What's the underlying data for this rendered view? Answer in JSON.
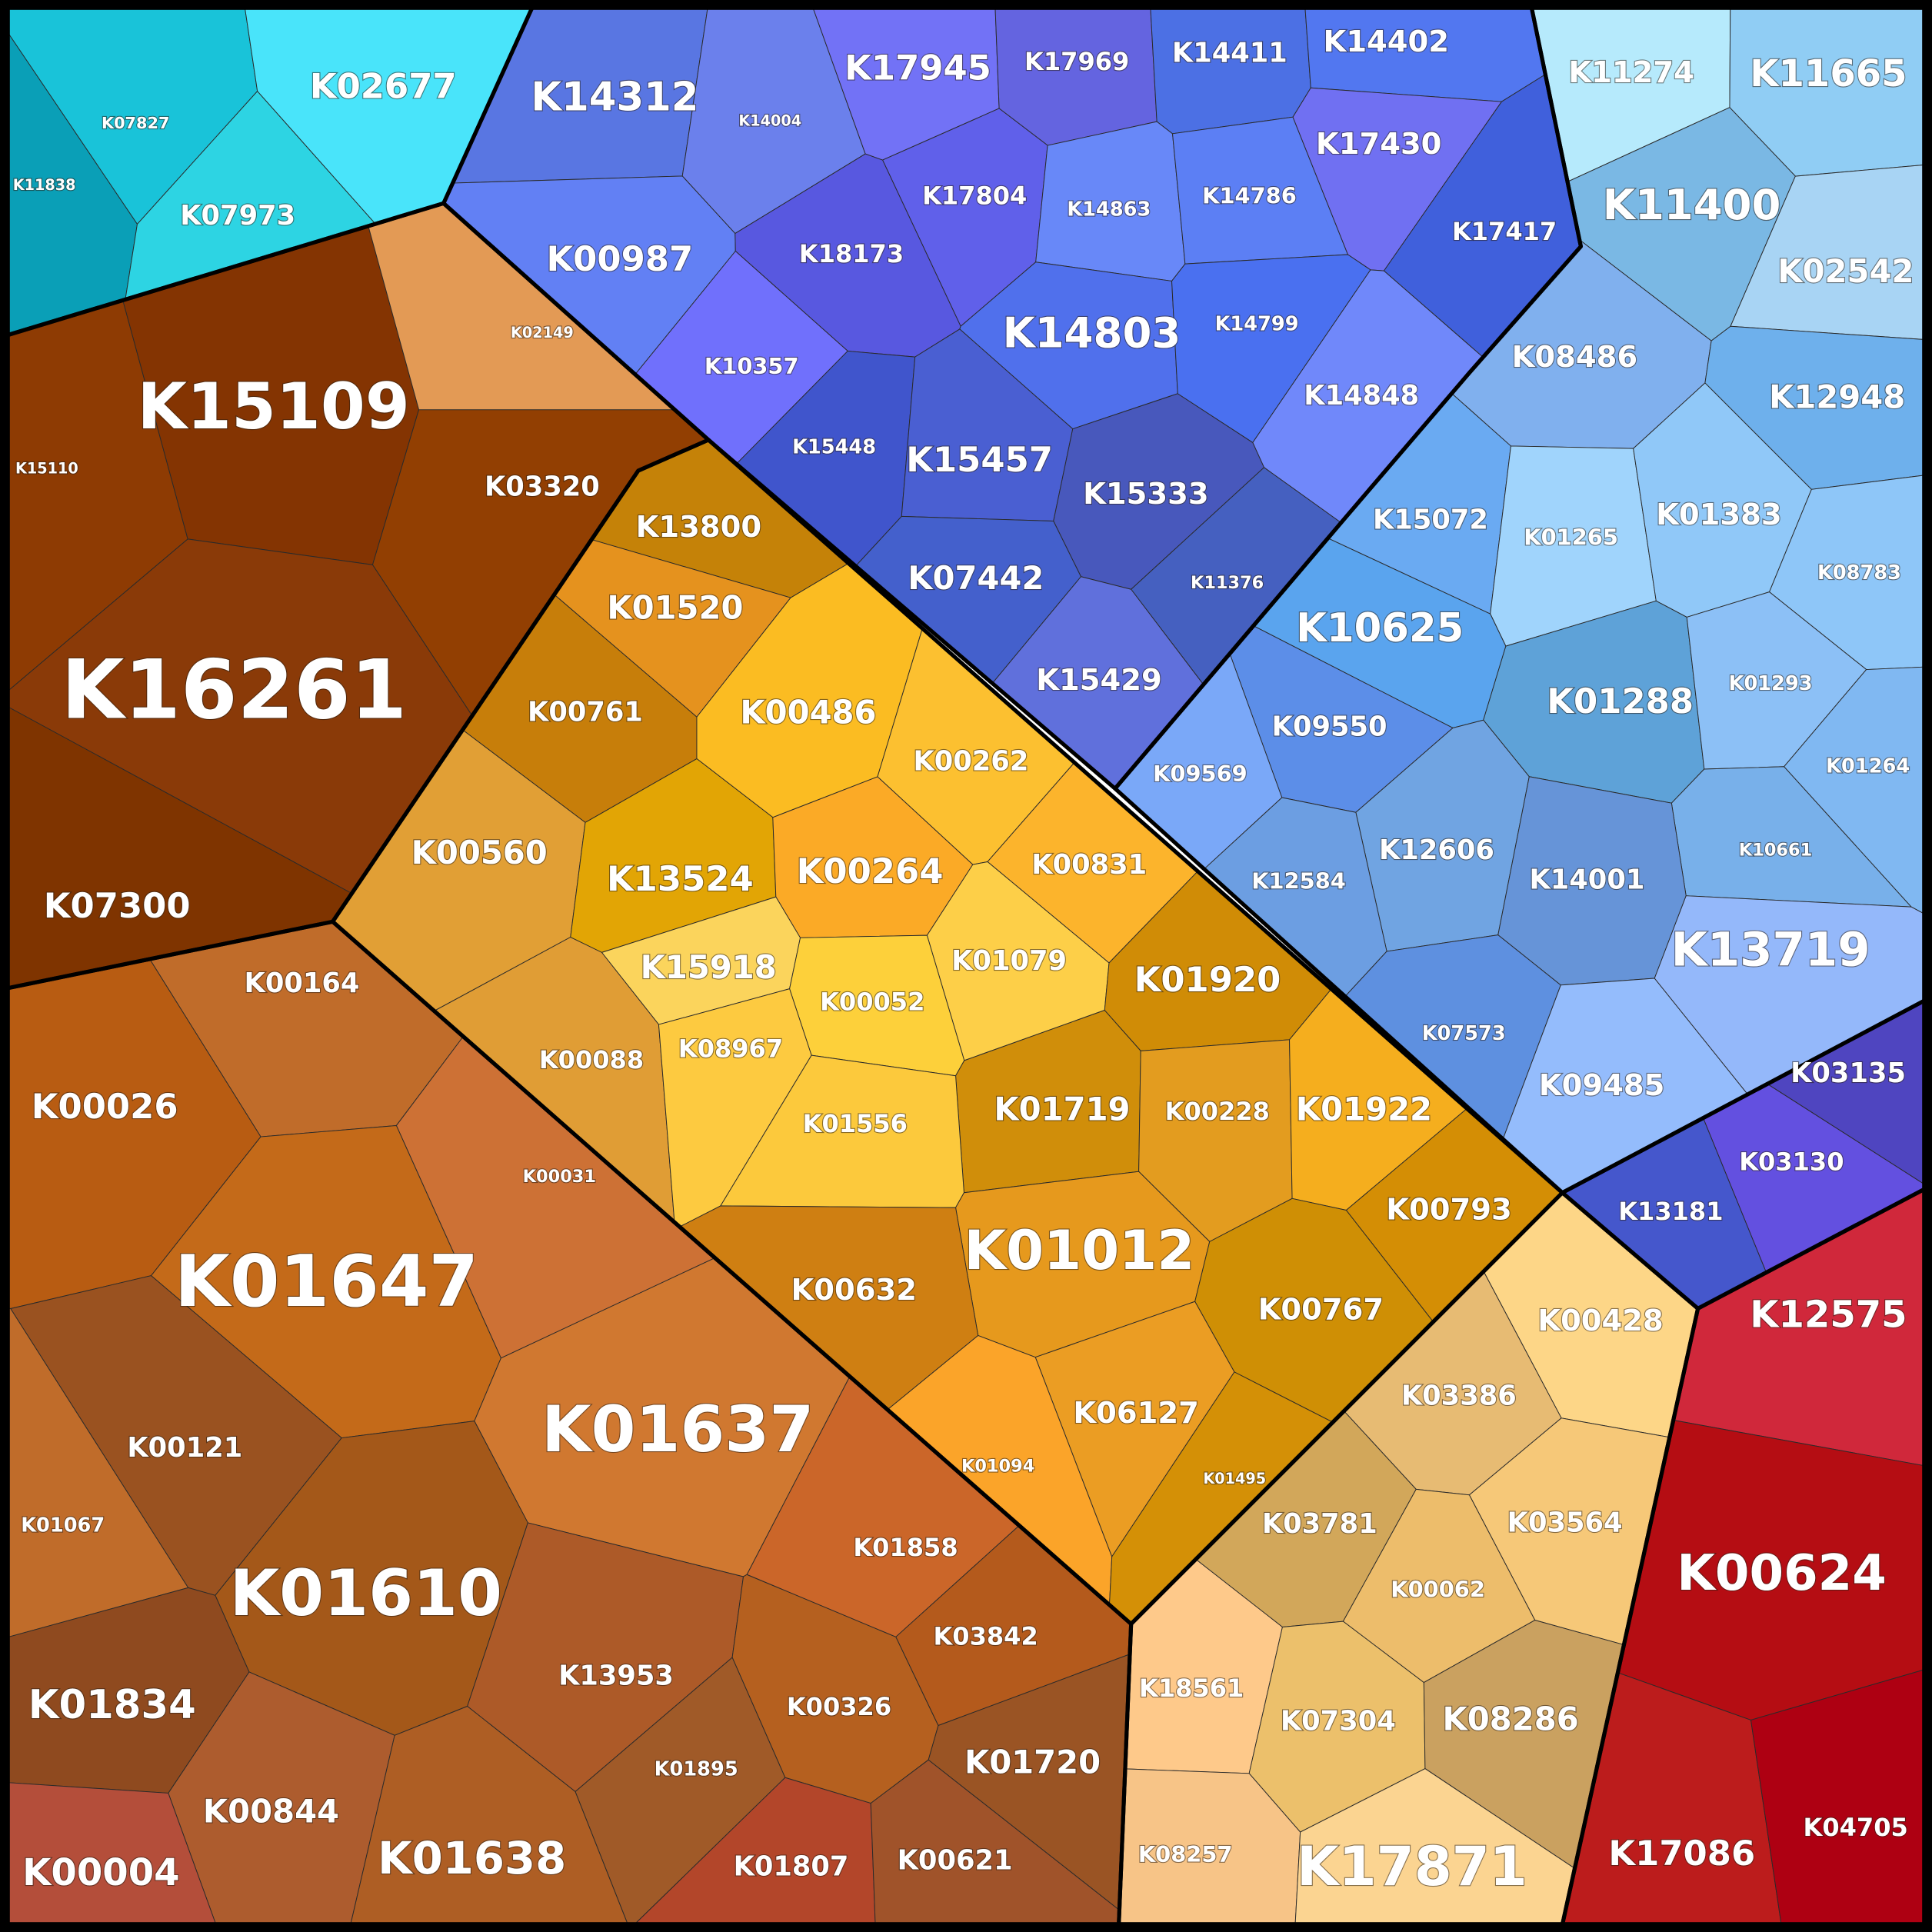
{
  "groups": [
    {
      "cells": [
        "K11838",
        "K07827",
        "K07973",
        "K02677"
      ]
    },
    {
      "cells": [
        "K15110",
        "K15109",
        "K03320",
        "K16261",
        "K07300",
        "K02149"
      ]
    },
    {
      "cells": [
        "K00164",
        "K00026",
        "K00031",
        "K01647",
        "K01637",
        "K00121",
        "K01067",
        "K01610",
        "K01834",
        "K13953",
        "K00326",
        "K01858",
        "K03842",
        "K01720",
        "K01895",
        "K00844",
        "K01638",
        "K01807",
        "K00621",
        "K00004"
      ]
    },
    {
      "cells": [
        "K13800",
        "K01520",
        "K00761",
        "K00486",
        "K00262",
        "K00560",
        "K13524",
        "K00264",
        "K00831",
        "K15918",
        "K01079",
        "K00052",
        "K01920",
        "K00088",
        "K08967",
        "K01719",
        "K00228",
        "K01922",
        "K01556",
        "K00793",
        "K01012",
        "K00632",
        "K00767",
        "K06127",
        "K01094",
        "K01495"
      ]
    },
    {
      "cells": [
        "K00428",
        "K03386",
        "K03781",
        "K03564",
        "K00062",
        "K18561",
        "K07304",
        "K08286",
        "K08257",
        "K17871"
      ]
    },
    {
      "cells": [
        "K12575",
        "K00624",
        "K17086",
        "K04705"
      ]
    },
    {
      "cells": [
        "K03135",
        "K03130",
        "K13181"
      ]
    },
    {
      "cells": [
        "K14312",
        "K14004",
        "K17945",
        "K17969",
        "K14411",
        "K14402",
        "K00987",
        "K17804",
        "K18173",
        "K14863",
        "K14786",
        "K17430",
        "K17417",
        "K10357",
        "K14803",
        "K14799",
        "K14848",
        "K15448",
        "K15457",
        "K15333",
        "K07442",
        "K11376",
        "K15429"
      ]
    },
    {
      "cells": [
        "K11274",
        "K11665",
        "K11400",
        "K02542",
        "K08486",
        "K12948",
        "K15072",
        "K01265",
        "K01383",
        "K08783",
        "K10625",
        "K01288",
        "K01293",
        "K09550",
        "K09569",
        "K01264",
        "K12606",
        "K10661",
        "K12584",
        "K14001",
        "K13719",
        "K07573",
        "K09485"
      ]
    }
  ]
}
